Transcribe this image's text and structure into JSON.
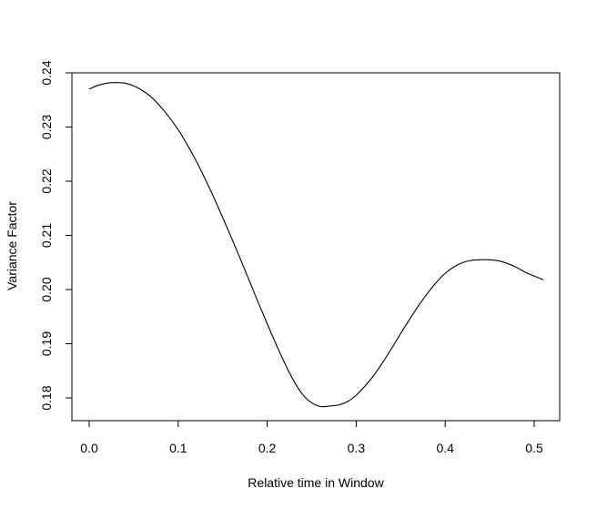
{
  "chart_data": {
    "type": "line",
    "title": "",
    "xlabel": "Relative time in Window",
    "ylabel": "Variance Factor",
    "xlim": [
      0.0,
      0.51
    ],
    "ylim": [
      0.178,
      0.24
    ],
    "xticks": [
      0.0,
      0.1,
      0.2,
      0.3,
      0.4,
      0.5
    ],
    "xtick_labels": [
      "0.0",
      "0.1",
      "0.2",
      "0.3",
      "0.4",
      "0.5"
    ],
    "yticks": [
      0.18,
      0.19,
      0.2,
      0.21,
      0.22,
      0.23,
      0.24
    ],
    "ytick_labels": [
      "0.18",
      "0.19",
      "0.20",
      "0.21",
      "0.22",
      "0.23",
      "0.24"
    ],
    "grid": false,
    "legend": "none",
    "series": [
      {
        "x": [
          0.0,
          0.01,
          0.02,
          0.03,
          0.04,
          0.05,
          0.06,
          0.07,
          0.08,
          0.09,
          0.1,
          0.11,
          0.12,
          0.13,
          0.14,
          0.15,
          0.16,
          0.17,
          0.18,
          0.19,
          0.2,
          0.21,
          0.22,
          0.23,
          0.24,
          0.25,
          0.26,
          0.27,
          0.28,
          0.29,
          0.3,
          0.31,
          0.32,
          0.33,
          0.34,
          0.35,
          0.36,
          0.37,
          0.38,
          0.39,
          0.4,
          0.41,
          0.42,
          0.43,
          0.44,
          0.45,
          0.46,
          0.47,
          0.48,
          0.49,
          0.5,
          0.51
        ],
        "y": [
          0.237,
          0.2377,
          0.2381,
          0.2382,
          0.2381,
          0.2376,
          0.2367,
          0.2355,
          0.2338,
          0.2318,
          0.2295,
          0.2268,
          0.2238,
          0.2205,
          0.217,
          0.2133,
          0.2095,
          0.2056,
          0.2016,
          0.1976,
          0.1937,
          0.1899,
          0.1863,
          0.1831,
          0.1806,
          0.1791,
          0.1784,
          0.1785,
          0.1787,
          0.1793,
          0.1805,
          0.1822,
          0.1842,
          0.1866,
          0.1892,
          0.1919,
          0.1945,
          0.197,
          0.1993,
          0.2013,
          0.203,
          0.2042,
          0.205,
          0.2054,
          0.2055,
          0.2055,
          0.2053,
          0.2048,
          0.2041,
          0.2032,
          0.2025,
          0.2018
        ]
      }
    ]
  }
}
